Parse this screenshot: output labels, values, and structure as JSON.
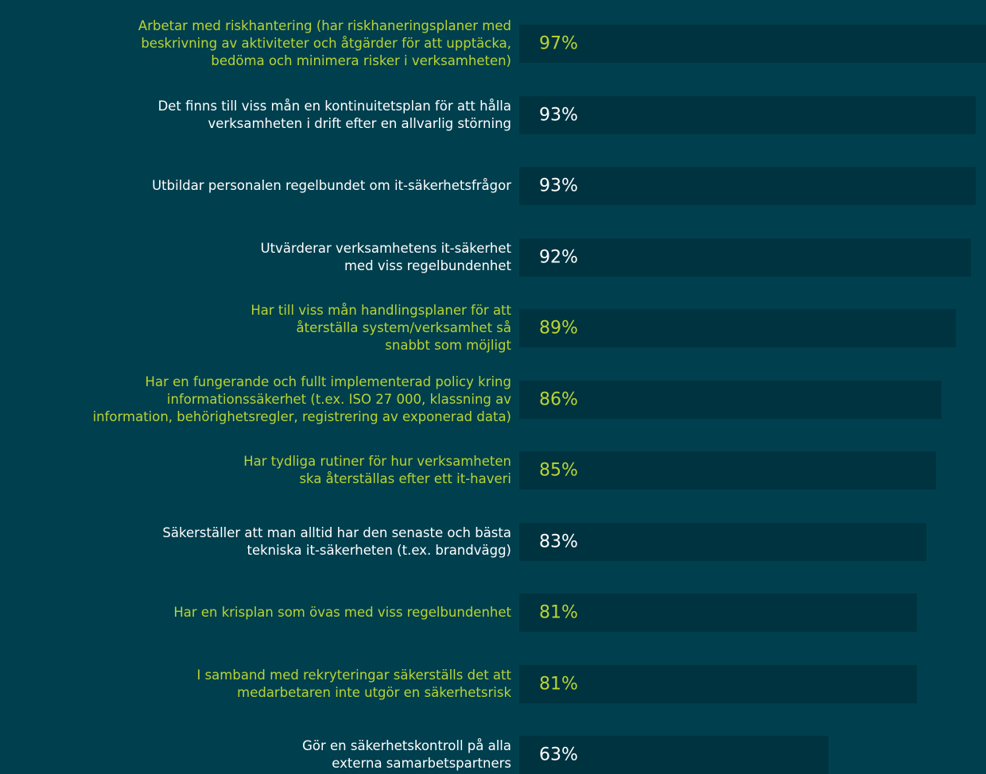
{
  "chart_data": {
    "type": "bar",
    "orientation": "horizontal",
    "categories": [
      "Arbetar med riskhantering (har riskhaneringsplaner med\nbeskrivning av aktiviteter och åtgärder för att upptäcka,\nbedöma och minimera risker i verksamheten)",
      "Det finns till viss mån en kontinuitetsplan för att hålla\nverksamheten i drift efter en allvarlig störning",
      "Utbildar personalen regelbundet om it-säkerhetsfrågor",
      "Utvärderar verksamhetens it-säkerhet\nmed viss regelbundenhet",
      "Har till viss mån handlingsplaner för att\nåterställa system/verksamhet så\nsnabbt som möjligt",
      "Har en fungerande och fullt implementerad policy kring\ninformationssäkerhet (t.ex. ISO 27 000, klassning av\ninformation, behörighetsregler, registrering av exponerad data)",
      "Har tydliga rutiner för hur verksamheten\nska återställas efter ett it-haveri",
      "Säkerställer att man alltid har den senaste och bästa\ntekniska it-säkerheten (t.ex. brandvägg)",
      "Har en krisplan som övas med viss regelbundenhet",
      "I samband med rekryteringar säkerställs det att\nmedarbetaren inte utgör en säkerhetsrisk",
      "Gör en säkerhetskontroll på alla\nexterna samarbetspartners"
    ],
    "values": [
      97,
      93,
      93,
      92,
      89,
      86,
      85,
      83,
      81,
      81,
      63
    ],
    "value_labels": [
      "97%",
      "93%",
      "93%",
      "92%",
      "89%",
      "86%",
      "85%",
      "83%",
      "81%",
      "81%",
      "63%"
    ],
    "label_colors": [
      "#b8d432",
      "#ffffff",
      "#ffffff",
      "#ffffff",
      "#b8d432",
      "#b8d432",
      "#b8d432",
      "#ffffff",
      "#b8d432",
      "#b8d432",
      "#ffffff"
    ],
    "color": "#003340",
    "xlim": [
      0,
      100
    ]
  }
}
